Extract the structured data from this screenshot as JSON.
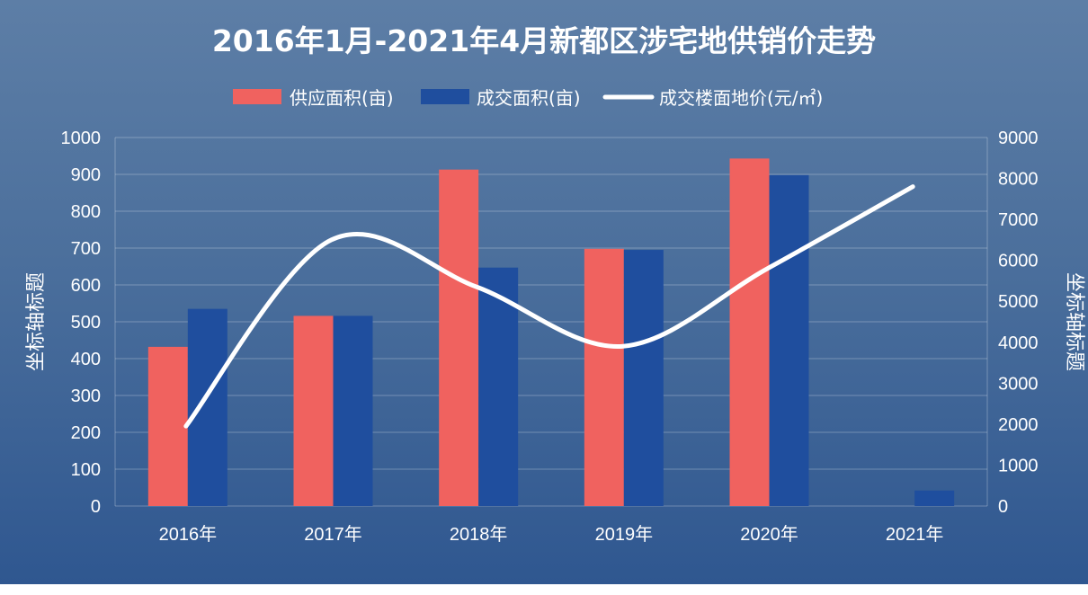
{
  "chart_data": {
    "type": "bar",
    "title": "2016年1月-2021年4月新都区涉宅地供销价走势",
    "categories": [
      "2016年",
      "2017年",
      "2018年",
      "2019年",
      "2020年",
      "2021年"
    ],
    "series": [
      {
        "name": "供应面积(亩)",
        "type": "bar",
        "axis": "left",
        "color": "#f0625f",
        "values": [
          432,
          516,
          913,
          698,
          943,
          null
        ]
      },
      {
        "name": "成交面积(亩)",
        "type": "bar",
        "axis": "left",
        "color": "#1f4e9e",
        "values": [
          535,
          516,
          647,
          695,
          898,
          42
        ]
      },
      {
        "name": "成交楼面地价(元/㎡)",
        "type": "line",
        "axis": "right",
        "color": "#ffffff",
        "values": [
          1950,
          6500,
          5350,
          3900,
          5800,
          7800
        ]
      }
    ],
    "ylabel": "坐标轴标题",
    "y2label": "坐标轴标题",
    "ylim": [
      0,
      1000
    ],
    "y2lim": [
      0,
      9000
    ],
    "yticks": [
      0,
      100,
      200,
      300,
      400,
      500,
      600,
      700,
      800,
      900,
      1000
    ],
    "y2ticks": [
      0,
      1000,
      2000,
      3000,
      4000,
      5000,
      6000,
      7000,
      8000,
      9000
    ],
    "grid": true,
    "legend_position": "top"
  }
}
